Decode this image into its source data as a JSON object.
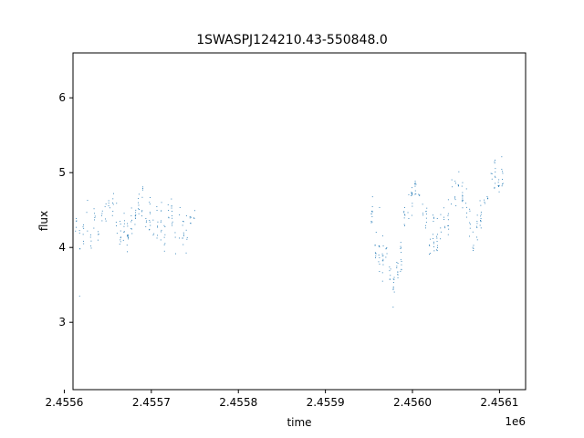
{
  "chart_data": {
    "type": "scatter",
    "title": "1SWASPJ124210.43-550848.0",
    "xlabel": "time",
    "ylabel": "flux",
    "x_offset_label": "1e6",
    "xlim": [
      2.45561,
      2.45613
    ],
    "ylim": [
      2.1,
      6.6
    ],
    "x_ticks": [
      2.4556,
      2.4557,
      2.4558,
      2.4559,
      2.456,
      2.4561
    ],
    "x_tick_labels": [
      "2.4556",
      "2.4557",
      "2.4558",
      "2.4559",
      "2.4560",
      "2.4561"
    ],
    "y_ticks": [
      3,
      4,
      5,
      6
    ],
    "y_tick_labels": [
      "3",
      "4",
      "5",
      "6"
    ],
    "grid": false,
    "marker_color": "#1f77b4",
    "segments": [
      {
        "x_start": 2.455613,
        "x_end": 2.455753,
        "baseline": 4.3
      },
      {
        "x_start": 2.455953,
        "x_end": 2.456107,
        "baseline": 4.3
      }
    ],
    "series_trend": {
      "x": [
        2.455613,
        2.45563,
        2.45565,
        2.45567,
        2.45569,
        2.45571,
        2.45573,
        2.455753,
        2.455953,
        2.45597,
        2.45598,
        2.45599,
        2.456,
        2.45601,
        2.45602,
        2.45603,
        2.45604,
        2.45605,
        2.45606,
        2.45607,
        2.45608,
        2.45609,
        2.456107
      ],
      "y": [
        4.2,
        4.25,
        4.4,
        4.2,
        4.55,
        4.3,
        4.25,
        4.4,
        4.1,
        3.9,
        3.55,
        4.3,
        4.8,
        4.6,
        4.1,
        4.2,
        4.4,
        4.75,
        4.4,
        4.0,
        4.35,
        4.8,
        5.0
      ]
    }
  }
}
